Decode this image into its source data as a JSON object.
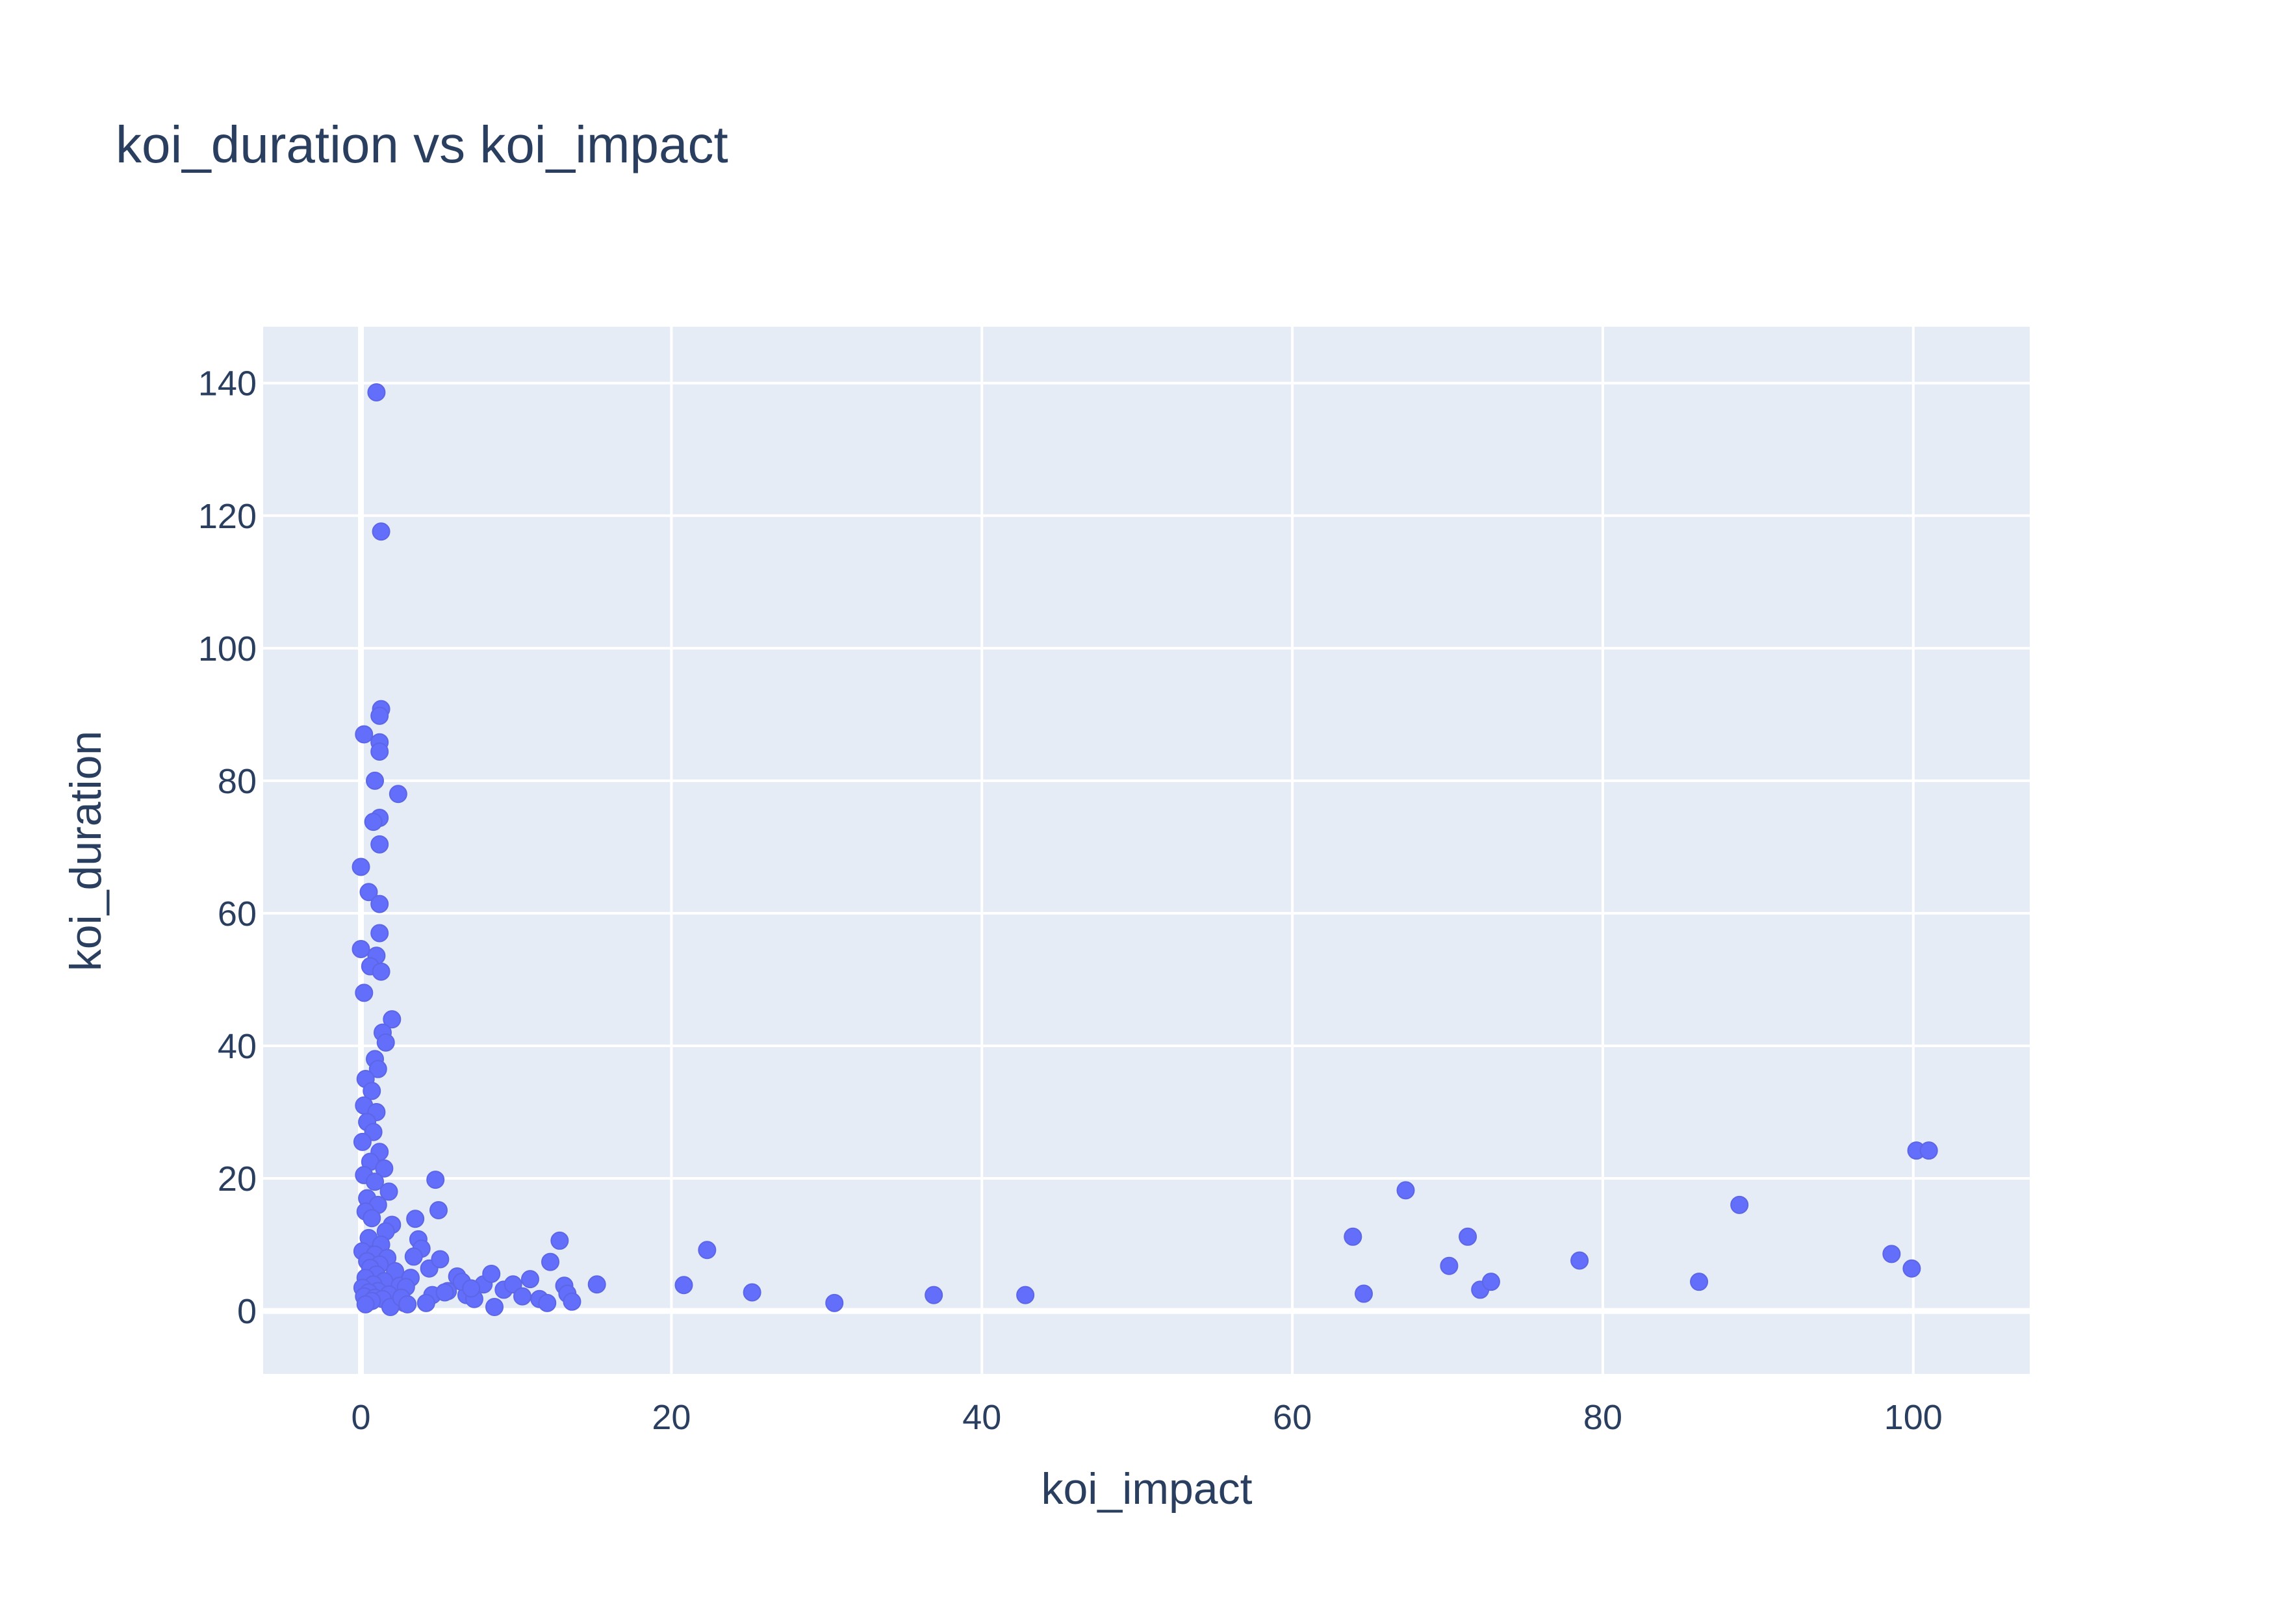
{
  "chart_data": {
    "type": "scatter",
    "title": "koi_duration vs koi_impact",
    "xlabel": "koi_impact",
    "ylabel": "koi_duration",
    "xlim": [
      -6.3,
      107.5
    ],
    "ylim": [
      -9.5,
      148.5
    ],
    "xticks": [
      0,
      20,
      40,
      60,
      80,
      100
    ],
    "yticks": [
      0,
      20,
      40,
      60,
      80,
      100,
      120,
      140
    ],
    "grid": true,
    "legend": "none",
    "marker_color": "#636efa",
    "plot_background": "#e5ecf6",
    "series": [
      {
        "x": [
          1.0,
          1.3,
          1.3,
          1.2,
          0.2,
          1.2,
          1.2,
          0.9,
          2.4,
          1.2,
          0.8,
          1.2,
          0.0,
          0.5,
          1.2,
          1.2,
          0.0,
          1.0,
          0.6,
          1.3,
          0.2,
          2.0,
          1.4,
          1.6,
          0.9,
          1.1,
          0.3,
          0.7,
          0.2,
          1.0,
          0.4,
          0.8,
          0.1,
          1.2,
          0.6,
          1.5,
          0.2,
          0.9,
          1.8,
          0.4,
          1.1,
          0.3,
          0.7,
          2.0,
          1.6,
          0.5,
          1.3,
          0.1,
          0.9,
          1.7,
          0.4,
          1.2,
          0.6,
          2.2,
          1.0,
          0.3,
          1.5,
          0.8,
          2.5,
          0.1,
          1.1,
          0.5,
          1.8,
          0.2,
          0.9,
          1.4,
          0.7,
          2.8,
          0.3,
          1.9
        ],
        "y": [
          138.6,
          117.6,
          90.8,
          89.8,
          87.0,
          85.8,
          84.4,
          80.0,
          78.0,
          74.4,
          73.8,
          70.4,
          67.0,
          63.2,
          61.4,
          57.0,
          54.6,
          53.6,
          52.0,
          51.2,
          48.0,
          44.0,
          42.0,
          40.5,
          38.0,
          36.5,
          35.0,
          33.2,
          31.0,
          30.0,
          28.5,
          27.0,
          25.5,
          24.0,
          22.5,
          21.5,
          20.5,
          19.5,
          18.0,
          17.0,
          16.0,
          15.0,
          14.0,
          13.0,
          12.0,
          11.0,
          10.0,
          9.0,
          8.5,
          8.0,
          7.5,
          7.0,
          6.5,
          6.0,
          5.5,
          5.0,
          4.5,
          4.0,
          3.8,
          3.5,
          3.0,
          2.8,
          2.5,
          2.2,
          2.0,
          1.8,
          1.5,
          1.2,
          1.0,
          0.6
        ]
      },
      {
        "x": [
          4.8,
          5.0,
          3.5,
          3.7,
          3.9,
          4.4,
          5.1,
          3.2,
          2.9,
          4.6,
          5.6,
          6.2,
          6.8,
          7.3,
          7.9,
          8.4,
          8.6,
          9.2,
          9.8,
          10.4,
          10.9,
          11.5,
          12.0,
          12.2,
          12.8,
          13.1,
          13.3,
          13.6,
          15.2,
          3.4,
          4.2,
          5.4,
          6.5,
          7.1,
          2.6,
          3.0
        ],
        "y": [
          19.8,
          15.2,
          13.9,
          10.8,
          9.4,
          6.4,
          7.8,
          5.0,
          3.6,
          2.4,
          3.0,
          5.2,
          2.4,
          1.8,
          4.0,
          5.6,
          0.6,
          3.2,
          4.0,
          2.2,
          4.8,
          1.8,
          1.2,
          7.4,
          10.6,
          3.8,
          2.6,
          1.4,
          4.0,
          8.2,
          1.2,
          2.8,
          4.4,
          3.4,
          2.0,
          1.0
        ]
      },
      {
        "x": [
          20.8,
          22.3,
          25.2,
          30.5,
          36.9,
          42.8,
          63.9,
          64.6,
          67.3,
          70.1,
          71.3,
          72.1,
          72.8,
          78.5,
          86.2,
          88.8,
          98.6,
          99.9,
          100.2,
          101.0
        ],
        "y": [
          3.9,
          9.2,
          2.8,
          1.2,
          2.4,
          2.4,
          11.2,
          2.6,
          18.2,
          6.8,
          11.2,
          3.2,
          4.4,
          7.6,
          4.4,
          16.0,
          8.6,
          6.4,
          24.2,
          24.2
        ]
      }
    ]
  }
}
